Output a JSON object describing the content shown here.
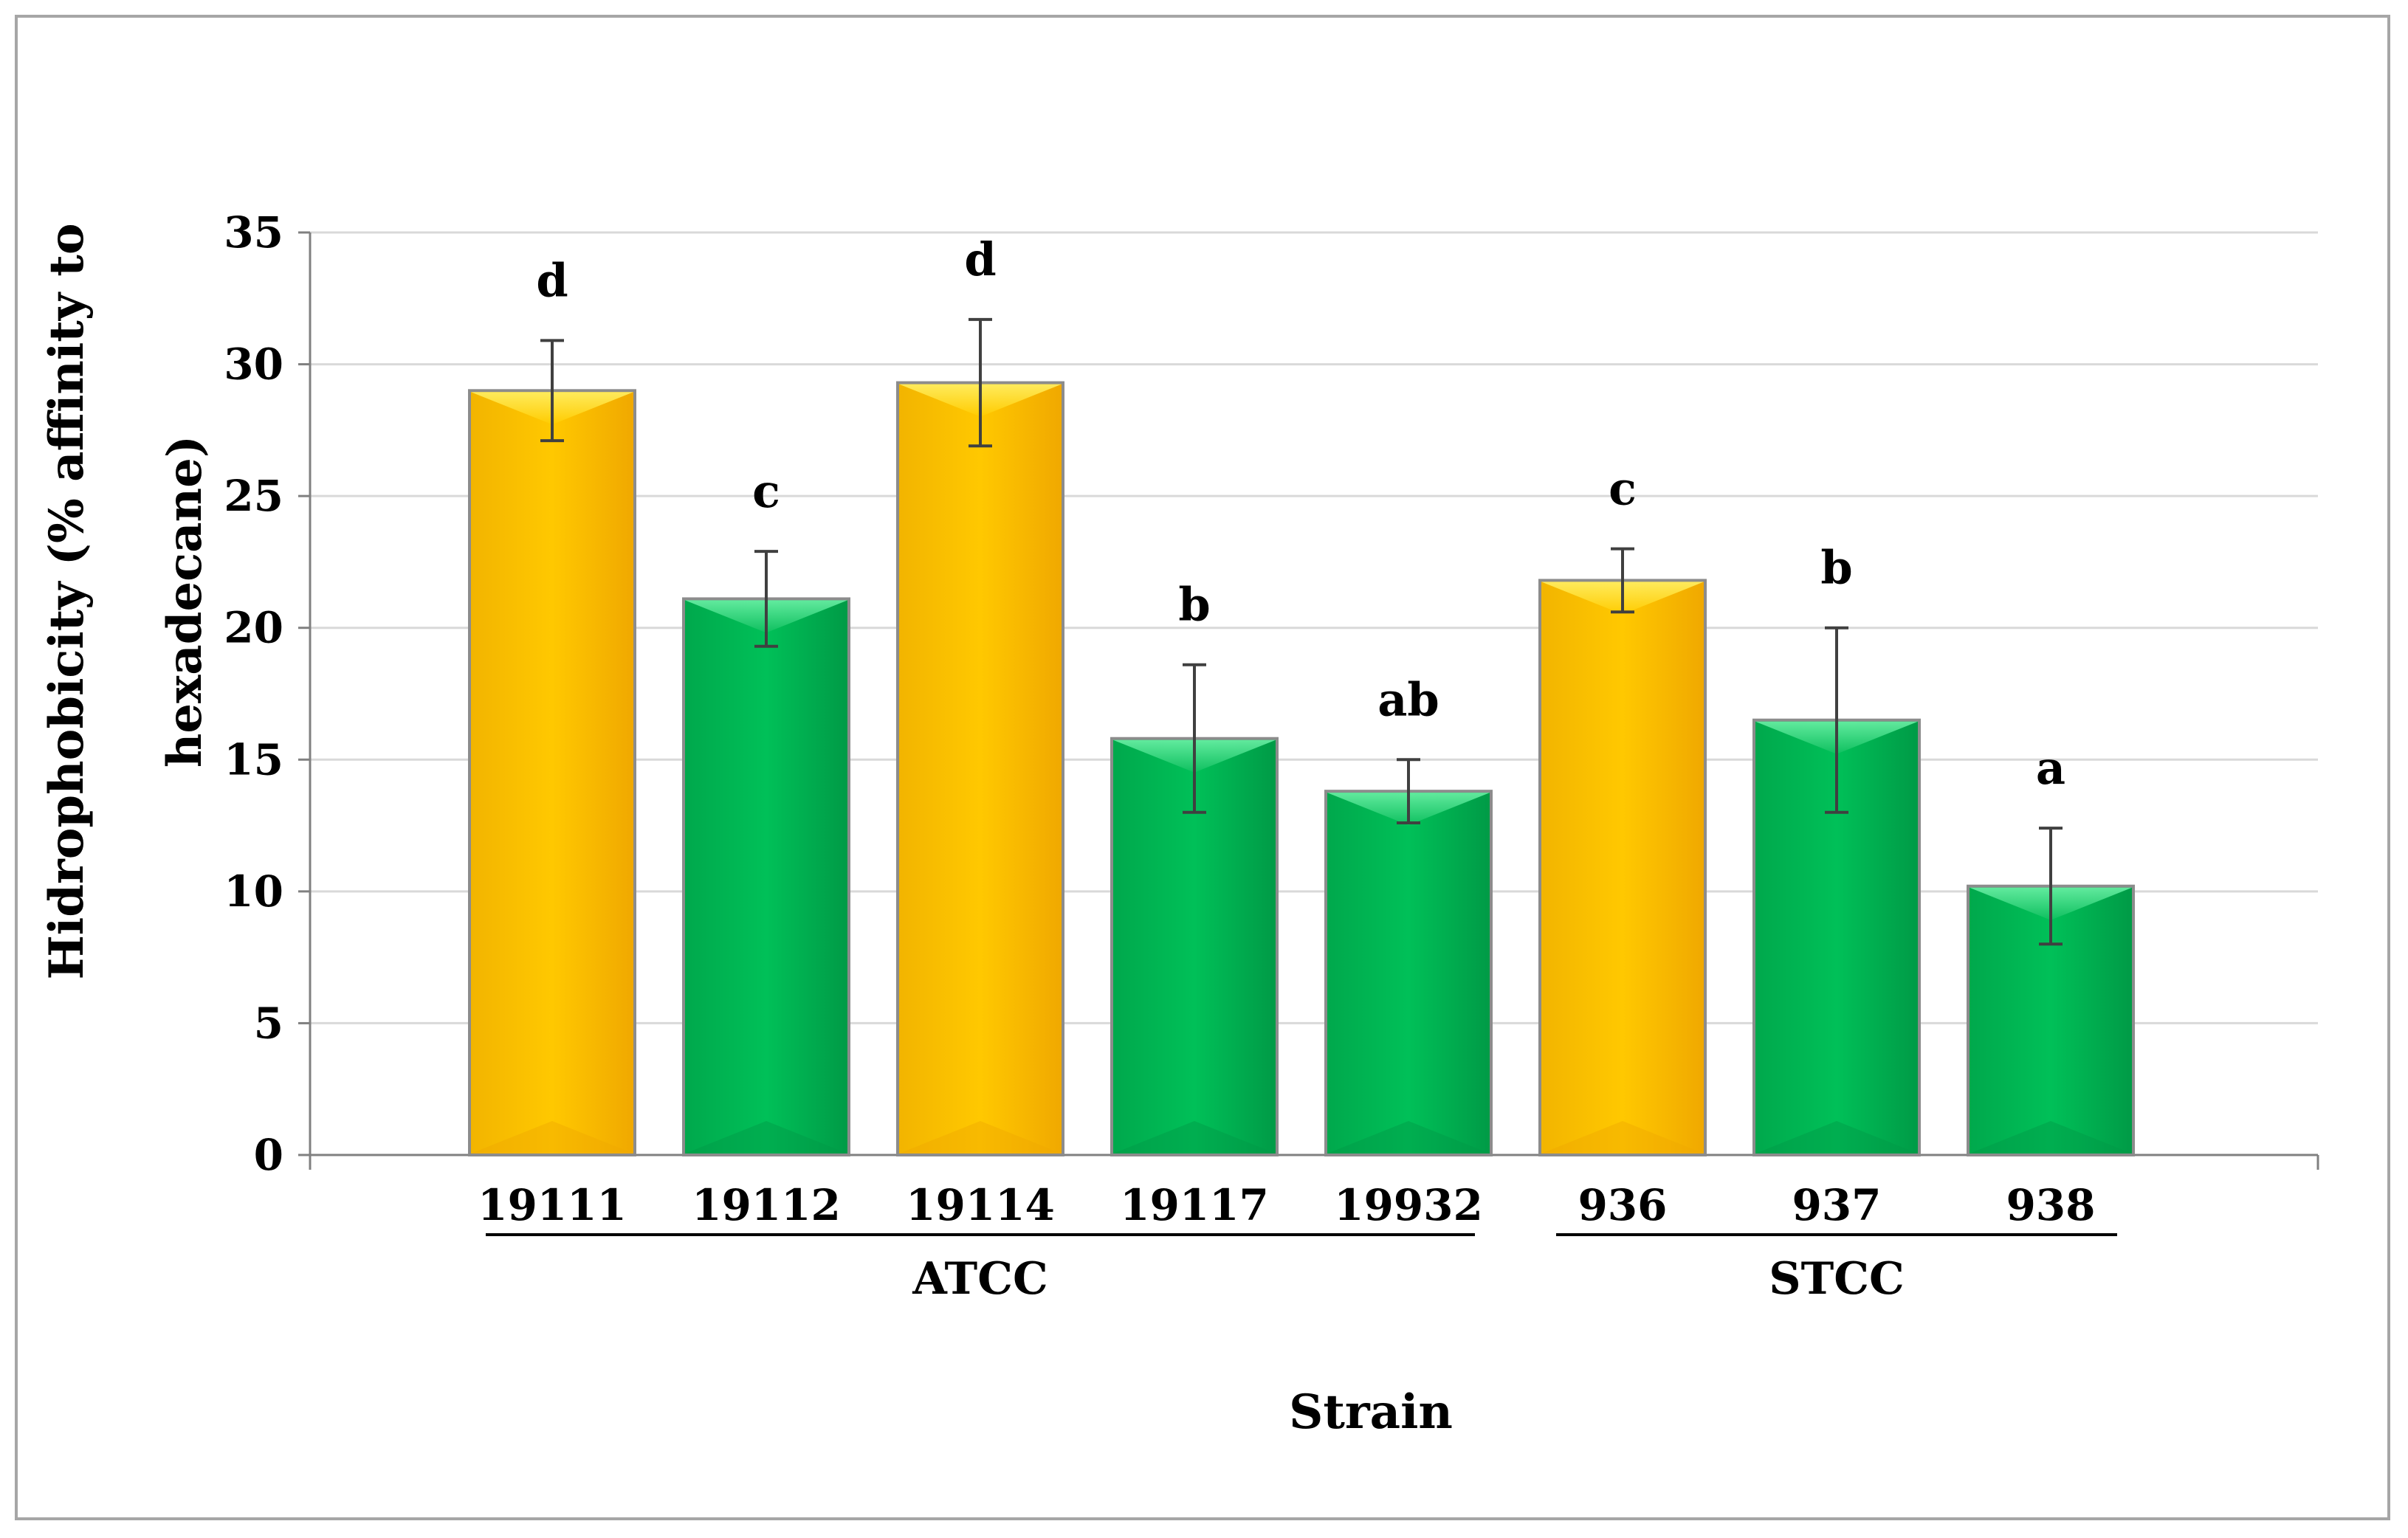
{
  "chart_data": {
    "type": "bar",
    "ylabel_line1": "Hidrophobicity (% affinity to",
    "ylabel_line2": "hexadecane)",
    "xlabel": "Strain",
    "ylim": [
      0,
      35
    ],
    "yticks": [
      0,
      5,
      10,
      15,
      20,
      25,
      30,
      35
    ],
    "grid": true,
    "categories": [
      "19111",
      "19112",
      "19114",
      "19117",
      "19932",
      "936",
      "937",
      "938"
    ],
    "values": [
      29.0,
      21.1,
      29.3,
      15.8,
      13.8,
      21.8,
      16.5,
      10.2
    ],
    "errors": [
      1.9,
      1.8,
      2.4,
      2.8,
      1.2,
      1.2,
      3.5,
      2.2
    ],
    "significance": [
      "d",
      "c",
      "d",
      "b",
      "ab",
      "c",
      "b",
      "a"
    ],
    "bar_colors": [
      "yellow",
      "green",
      "yellow",
      "green",
      "green",
      "yellow",
      "green",
      "green"
    ],
    "colors": {
      "yellow_top": "#ffe033",
      "yellow_mid": "#ffc000",
      "yellow_dark": "#f0a800",
      "green_top": "#4ee08f",
      "green_mid": "#00b050",
      "green_dark": "#009a46",
      "grid": "#d9d9d9",
      "axis": "#808080"
    },
    "groups": [
      {
        "name": "ATCC",
        "from": 0,
        "to": 4
      },
      {
        "name": "STCC",
        "from": 5,
        "to": 7
      }
    ]
  }
}
